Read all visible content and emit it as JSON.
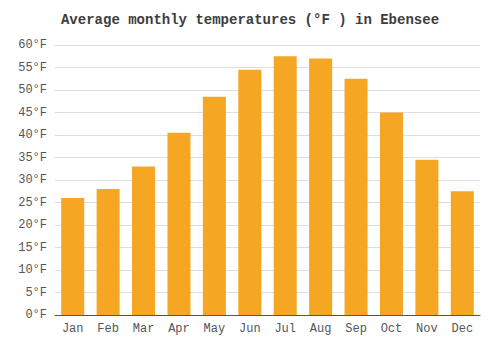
{
  "chart_data": {
    "type": "bar",
    "title": "Average monthly temperatures (°F ) in Ebensee",
    "categories": [
      "Jan",
      "Feb",
      "Mar",
      "Apr",
      "May",
      "Jun",
      "Jul",
      "Aug",
      "Sep",
      "Oct",
      "Nov",
      "Dec"
    ],
    "values": [
      26,
      28,
      33,
      40.5,
      48.5,
      54.5,
      57.5,
      57,
      52.5,
      45,
      34.5,
      27.5
    ],
    "color": "#F5A623",
    "ylim": [
      0,
      60
    ],
    "yticks": [
      {
        "value": 0,
        "label": "0°F"
      },
      {
        "value": 5,
        "label": "5°F"
      },
      {
        "value": 10,
        "label": "10°F"
      },
      {
        "value": 15,
        "label": "15°F"
      },
      {
        "value": 20,
        "label": "20°F"
      },
      {
        "value": 25,
        "label": "25°F"
      },
      {
        "value": 30,
        "label": "30°F"
      },
      {
        "value": 35,
        "label": "35°F"
      },
      {
        "value": 40,
        "label": "40°F"
      },
      {
        "value": 45,
        "label": "45°F"
      },
      {
        "value": 50,
        "label": "50°F"
      },
      {
        "value": 55,
        "label": "55°F"
      },
      {
        "value": 60,
        "label": "60°F"
      }
    ],
    "grid": true
  }
}
